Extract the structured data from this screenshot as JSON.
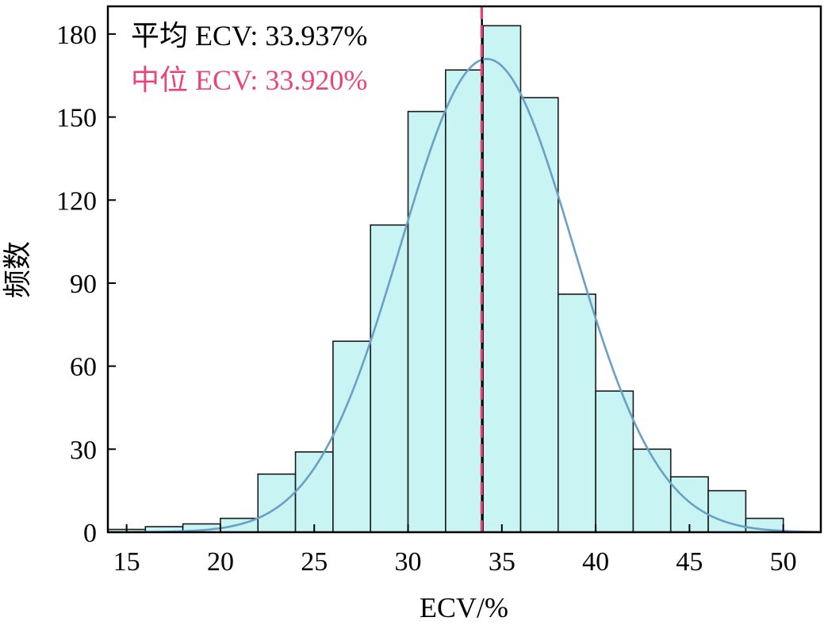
{
  "chart_data": {
    "type": "bar",
    "subtype": "histogram",
    "xlabel": "ECV/%",
    "ylabel": "频数",
    "xlim": [
      14,
      52
    ],
    "ylim": [
      0,
      190
    ],
    "xticks": [
      15,
      20,
      25,
      30,
      35,
      40,
      45,
      50
    ],
    "yticks": [
      0,
      30,
      60,
      90,
      120,
      150,
      180
    ],
    "bin_width": 2,
    "bins": [
      {
        "start": 14,
        "end": 16,
        "count": 1
      },
      {
        "start": 16,
        "end": 18,
        "count": 2
      },
      {
        "start": 18,
        "end": 20,
        "count": 3
      },
      {
        "start": 20,
        "end": 22,
        "count": 5
      },
      {
        "start": 22,
        "end": 24,
        "count": 21
      },
      {
        "start": 24,
        "end": 26,
        "count": 29
      },
      {
        "start": 26,
        "end": 28,
        "count": 69
      },
      {
        "start": 28,
        "end": 30,
        "count": 111
      },
      {
        "start": 30,
        "end": 32,
        "count": 152
      },
      {
        "start": 32,
        "end": 34,
        "count": 167
      },
      {
        "start": 34,
        "end": 36,
        "count": 183
      },
      {
        "start": 36,
        "end": 38,
        "count": 157
      },
      {
        "start": 38,
        "end": 40,
        "count": 86
      },
      {
        "start": 40,
        "end": 42,
        "count": 51
      },
      {
        "start": 42,
        "end": 44,
        "count": 30
      },
      {
        "start": 44,
        "end": 46,
        "count": 20
      },
      {
        "start": 46,
        "end": 48,
        "count": 15
      },
      {
        "start": 48,
        "end": 50,
        "count": 5
      }
    ],
    "fit_curve": {
      "type": "normal",
      "mean": 34.2,
      "sd": 4.6,
      "peak": 171
    },
    "mean_line": {
      "label": "平均 ECV: 33.937%",
      "value": 33.937,
      "color": "#000000",
      "style": "solid"
    },
    "median_line": {
      "label": "中位 ECV: 33.920%",
      "value": 33.92,
      "color": "#e8457a",
      "style": "dashed"
    },
    "colors": {
      "bar_fill": "#c8f4f4",
      "bar_stroke": "#1a1a1a",
      "curve": "#6a9fc6",
      "axes": "#000000"
    },
    "grid": false,
    "legend": "top-left"
  }
}
